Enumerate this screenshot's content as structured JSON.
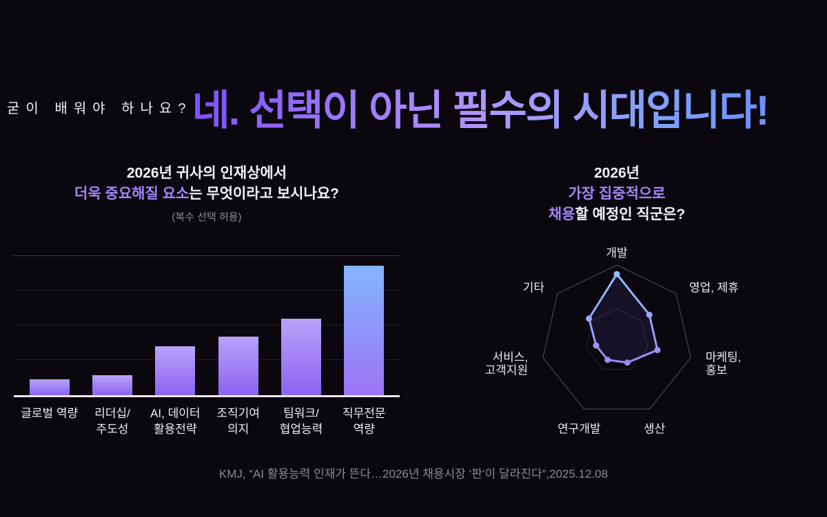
{
  "colors": {
    "background": "#0a070f",
    "accent_purple": "#a585fa",
    "title_gradient_start": "#7e4df8",
    "title_gradient_end": "#6d8efb",
    "bar_top": "#b9a2f8",
    "bar_bottom": "#8a63f2",
    "bar_highlight_top": "#85b5fd",
    "bar_highlight_bottom": "#9b74f6",
    "radar_line_top": "#8ec9ff",
    "radar_line_bottom": "#a06cf5",
    "muted_text": "#8d8a94"
  },
  "header": {
    "pre_title": "굳이 배워야 하나요?",
    "title": "네. 선택이 아닌 필수의 시대입니다!"
  },
  "left_section": {
    "title_line1": "2026년 귀사의 인재상에서",
    "title_line2_highlight": "더욱 중요해질 요소",
    "title_line2_rest": "는 무엇이라고 보시나요?",
    "subtitle": "(복수 선택 허용)"
  },
  "right_section": {
    "title_line1": "2026년",
    "title_line2": "가장 집중적으로",
    "title_line3_highlight": "채용",
    "title_line3_rest": "할 예정인 직군은?"
  },
  "footer": {
    "citation": "KMJ, “AI 활용능력 인재가 뜬다…2026년 채용시장 ‘판’이 달라진다”,2025.12.08"
  },
  "chart_data": [
    {
      "type": "bar",
      "title": "2026년 귀사의 인재상에서 더욱 중요해질 요소는 무엇이라고 보시나요? (복수 선택 허용)",
      "categories": [
        "글로벌 역량",
        "리더십/\n주도성",
        "AI, 데이터\n활용전략",
        "조직기여\n의지",
        "팀워크/\n협업능력",
        "직무전문\n역량"
      ],
      "values": [
        11,
        14,
        35,
        42,
        55,
        93
      ],
      "xlabel": "",
      "ylabel": "",
      "ylim": [
        0,
        100
      ],
      "grid": true,
      "legend": false
    },
    {
      "type": "radar",
      "title": "2026년 가장 집중적으로 채용할 예정인 직군은?",
      "categories": [
        "개발",
        "영업, 제휴",
        "마케팅,\n홍보",
        "생산",
        "연구개발",
        "서비스,\n고객지원",
        "기타"
      ],
      "values": [
        88,
        55,
        55,
        32,
        28,
        28,
        47
      ],
      "max": 100,
      "rings": [
        1,
        0.42
      ],
      "grid": true,
      "legend": false
    }
  ]
}
